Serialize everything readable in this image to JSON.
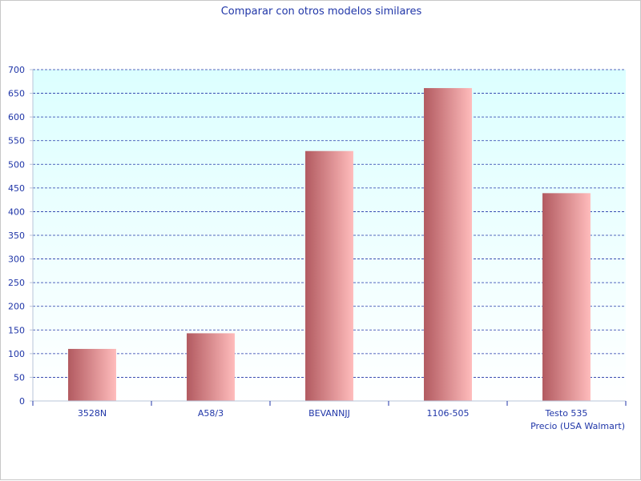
{
  "chart_data": {
    "type": "bar",
    "title": "Comparar con otros modelos similares",
    "xlabel": "Precio (USA Walmart)",
    "ylabel": "",
    "categories": [
      "3528N",
      "A58/3",
      "BEVANNJJ",
      "1106-505",
      "Testo 535"
    ],
    "values": [
      110,
      143,
      528,
      661,
      439
    ],
    "ylim": [
      0,
      700
    ],
    "yticks": [
      0,
      50,
      100,
      150,
      200,
      250,
      300,
      350,
      400,
      450,
      500,
      550,
      600,
      650,
      700
    ],
    "grid": true,
    "legend": "none"
  },
  "colors": {
    "text": "#2036a8",
    "grid": "#2036a8",
    "plot_bg_top": "#dcffff",
    "plot_bg_bottom": "#ffffff",
    "bar_dark": "#b25a60",
    "bar_light": "#ffbcbc"
  }
}
